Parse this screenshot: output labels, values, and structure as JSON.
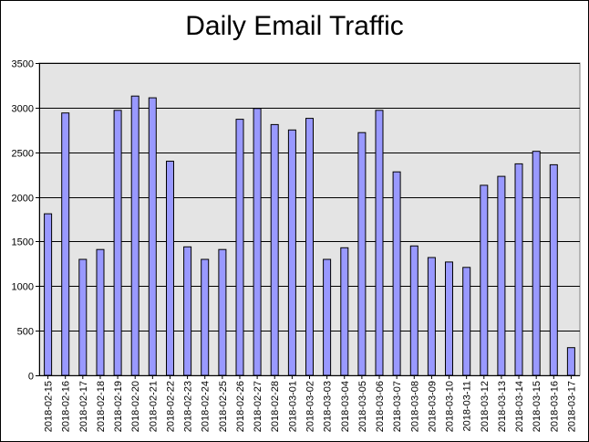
{
  "chart_data": {
    "type": "bar",
    "title": "Daily Email Traffic",
    "xlabel": "",
    "ylabel": "",
    "ylim": [
      0,
      3500
    ],
    "yticks": [
      0,
      500,
      1000,
      1500,
      2000,
      2500,
      3000,
      3500
    ],
    "grid": true,
    "legend": "none",
    "categories": [
      "2018-02-15",
      "2018-02-16",
      "2018-02-17",
      "2018-02-18",
      "2018-02-19",
      "2018-02-20",
      "2018-02-21",
      "2018-02-22",
      "2018-02-23",
      "2018-02-24",
      "2018-02-25",
      "2018-02-26",
      "2018-02-27",
      "2018-02-28",
      "2018-03-01",
      "2018-03-02",
      "2018-03-03",
      "2018-03-04",
      "2018-03-05",
      "2018-03-06",
      "2018-03-07",
      "2018-03-08",
      "2018-03-09",
      "2018-03-10",
      "2018-03-11",
      "2018-03-12",
      "2018-03-13",
      "2018-03-14",
      "2018-03-15",
      "2018-03-16",
      "2018-03-17"
    ],
    "values": [
      1810,
      2940,
      1300,
      1410,
      2970,
      3130,
      3110,
      2400,
      1440,
      1300,
      1410,
      2870,
      2990,
      2810,
      2750,
      2880,
      1300,
      1430,
      2720,
      2970,
      2280,
      1450,
      1320,
      1270,
      1210,
      2130,
      2230,
      2370,
      2510,
      2360,
      310
    ],
    "colors": {
      "bar_fill": "#9999ff",
      "bar_stroke": "#000000",
      "plot_background": "#e4e4e4",
      "gridline": "#000000"
    }
  }
}
